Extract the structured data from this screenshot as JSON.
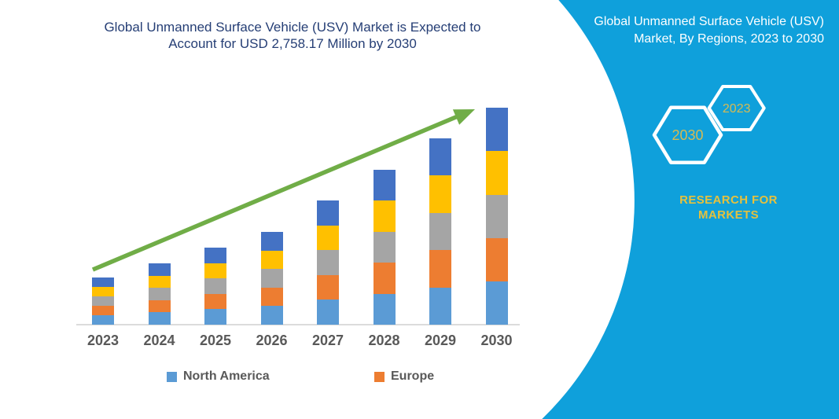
{
  "colors": {
    "navy_title": "#253E75",
    "gray_text": "#595959",
    "axis_line": "#DCDCDC",
    "panel_teal": "#0FA0DB",
    "gold_brand": "#E5C13E",
    "gold_hex_label": "#D6BA52",
    "hexagon_stroke": "#FFFFFF",
    "trend_arrow_green": "#70AD47"
  },
  "main_chart": {
    "title_line1": "Global Unmanned Surface Vehicle (USV) Market is Expected to",
    "title_line2": "Account for USD 2,758.17 Million by 2030"
  },
  "side_panel": {
    "title_line1": "Global Unmanned Surface Vehicle (USV)",
    "title_line2": "Market, By Regions, 2023 to 2030",
    "hexagon_back_label": "2030",
    "hexagon_front_label": "2023",
    "brand_line1": "RESEARCH FOR",
    "brand_line2": "MARKETS"
  },
  "chart_data": {
    "type": "stacked-bar",
    "title": "Global Unmanned Surface Vehicle (USV) Market is Expected to Account for USD 2,758.17 Million by 2030",
    "unit": "USD Million (totals estimated from bar heights; 2030 anchored to 2,758.17)",
    "categories": [
      "2023",
      "2024",
      "2025",
      "2026",
      "2027",
      "2028",
      "2029",
      "2030"
    ],
    "totals_estimated": [
      600,
      780,
      980,
      1180,
      1580,
      1970,
      2370,
      2758.17
    ],
    "series": [
      {
        "name": "North America",
        "color": "#5B9BD5",
        "values": [
          120,
          156,
          196,
          236,
          316,
          394,
          474,
          551.63
        ]
      },
      {
        "name": "Europe",
        "color": "#ED7D31",
        "values": [
          120,
          156,
          196,
          236,
          316,
          394,
          474,
          551.63
        ]
      },
      {
        "name": "Unlabeled (gray)",
        "color": "#A5A5A5",
        "values": [
          120,
          156,
          196,
          236,
          316,
          394,
          474,
          551.63
        ]
      },
      {
        "name": "Unlabeled (yellow)",
        "color": "#FFC000",
        "values": [
          120,
          156,
          196,
          236,
          316,
          394,
          474,
          551.63
        ]
      },
      {
        "name": "Unlabeled (dark blue)",
        "color": "#4472C4",
        "values": [
          120,
          156,
          196,
          236,
          316,
          394,
          474,
          551.63
        ]
      }
    ],
    "legend": [
      "North America",
      "Europe"
    ],
    "legend_position": "bottom",
    "grid": false,
    "y_axis_shown": false,
    "trend_arrow": "upward from 2023 to 2030"
  }
}
